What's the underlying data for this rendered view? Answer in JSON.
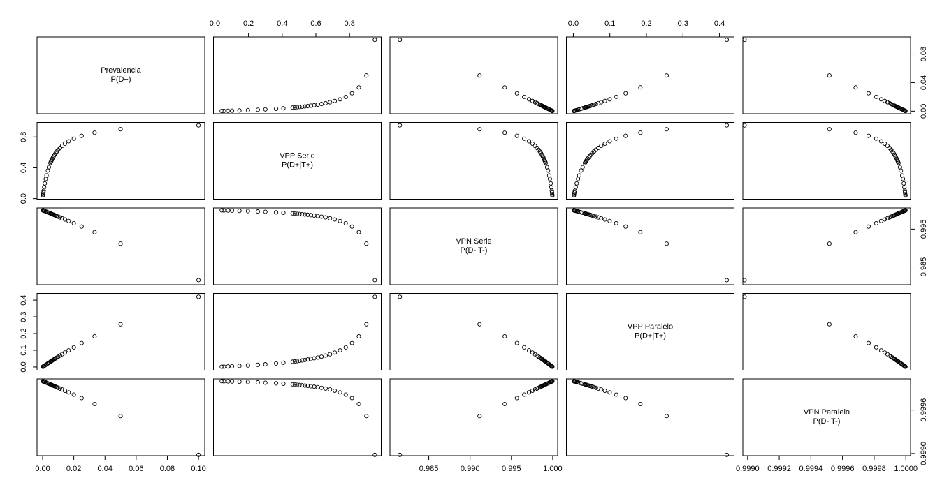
{
  "chart_data": {
    "type": "scatter-matrix",
    "variables": [
      {
        "name": "Prevalencia",
        "symbol": "P(D+)",
        "lim": [
          -0.0036,
          0.104
        ],
        "xticks": [
          {
            "value": 0,
            "label": "0.00"
          },
          0.02,
          0.04,
          0.06,
          0.08,
          {
            "value": 0.1,
            "label": "0.10"
          }
        ],
        "yticks": [
          {
            "value": 0,
            "label": "0.00"
          },
          0.04,
          0.08
        ],
        "values": [
          0.1,
          0.05,
          0.033333,
          0.025,
          0.02,
          0.016667,
          0.014286,
          0.0125,
          0.011111,
          0.01,
          0.0090909,
          0.0083333,
          0.0076923,
          0.0071429,
          0.0066667,
          0.00625,
          0.0058824,
          0.0055556,
          0.0052632,
          0.005,
          0.004,
          0.0033333,
          0.0025,
          0.002,
          0.0014286,
          0.001,
          0.00066667,
          0.0005,
          0.00033333,
          0.00025
        ]
      },
      {
        "name": "VPP Serie",
        "symbol": "P(D+|T+)",
        "lim": [
          -0.008,
          0.988
        ],
        "xticks": [
          {
            "value": 0,
            "label": "0.0"
          },
          0.2,
          0.4,
          0.6,
          0.8
        ],
        "yticks": [
          {
            "value": 0,
            "label": "0.0"
          },
          0.4,
          0.8
        ],
        "values": [
          0.95,
          0.9,
          0.855,
          0.8143,
          0.7773,
          0.7435,
          0.7125,
          0.684,
          0.6577,
          0.6333,
          0.6107,
          0.5897,
          0.57,
          0.5516,
          0.5344,
          0.5182,
          0.5029,
          0.4886,
          0.475,
          0.4622,
          0.4071,
          0.3638,
          0.3,
          0.2552,
          0.1966,
          0.1462,
          0.1024,
          0.0788,
          0.0539,
          0.041
        ]
      },
      {
        "name": "VPN Serie",
        "symbol": "P(D-|T-)",
        "lim": [
          0.9803,
          1.0006
        ],
        "xticks": [
          0.985,
          {
            "value": 0.99,
            "label": "0.990"
          },
          0.995,
          {
            "value": 1,
            "label": "1.000"
          }
        ],
        "yticks": [
          0.985,
          0.995
        ],
        "values": [
          0.9815,
          0.99115,
          0.99419,
          0.99567,
          0.99655,
          0.99713,
          0.99755,
          0.99786,
          0.9981,
          0.99829,
          0.99845,
          0.99858,
          0.99869,
          0.99878,
          0.99886,
          0.99893,
          0.999,
          0.99905,
          0.9991,
          0.99915,
          0.99932,
          0.99943,
          0.99958,
          0.99966,
          0.99976,
          0.99983,
          0.99989,
          0.99992,
          0.99994,
          0.99996
        ]
      },
      {
        "name": "VPP Paralelo",
        "symbol": "P(D+|T+)",
        "lim": [
          -0.019,
          0.44
        ],
        "xticks": [
          {
            "value": 0,
            "label": "0.0"
          },
          0.1,
          0.2,
          0.3,
          0.4
        ],
        "yticks": [
          {
            "value": 0,
            "label": "0.0"
          },
          0.1,
          0.2,
          0.3,
          0.4
        ],
        "values": [
          0.4199,
          0.2553,
          0.1834,
          0.1431,
          0.1173,
          0.0994,
          0.0863,
          0.0762,
          0.0682,
          0.0617,
          0.0564,
          0.0519,
          0.0481,
          0.0448,
          0.0419,
          0.0394,
          0.0371,
          0.0351,
          0.0333,
          0.0317,
          0.0255,
          0.0213,
          0.0161,
          0.0129,
          0.00923,
          0.00648,
          0.00433,
          0.00325,
          0.00217,
          0.00163
        ]
      },
      {
        "name": "VPN Paralelo",
        "symbol": "P(D-|T-)",
        "lim": [
          0.99897,
          1.00003
        ],
        "xticks": [
          {
            "value": 0.999,
            "label": "0.9990"
          },
          0.9992,
          0.9994,
          0.9996,
          0.9998,
          {
            "value": 1,
            "label": "1.0000"
          }
        ],
        "yticks": [
          {
            "value": 0.999,
            "label": "0.9990"
          },
          0.9996
        ],
        "values": [
          0.998981,
          0.999517,
          0.999683,
          0.999765,
          0.999813,
          0.999844,
          0.999867,
          0.999884,
          0.999897,
          0.999907,
          0.999916,
          0.999923,
          0.999929,
          0.999934,
          0.999938,
          0.999942,
          0.999946,
          0.999949,
          0.999951,
          0.999954,
          0.999963,
          0.999969,
          0.999977,
          0.999982,
          0.999987,
          0.999991,
          0.999994,
          0.999995,
          0.999997,
          0.999998
        ]
      }
    ]
  }
}
